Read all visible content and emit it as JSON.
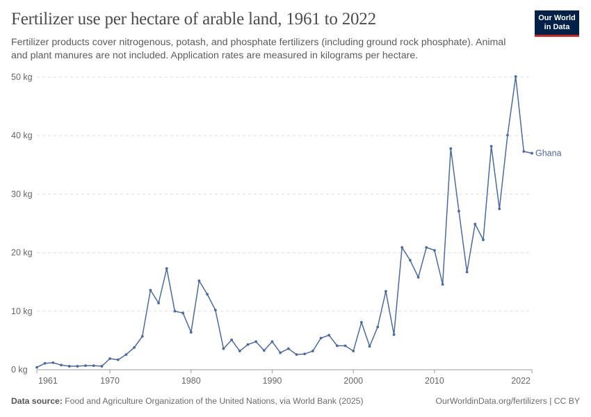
{
  "header": {
    "title": "Fertilizer use per hectare of arable land, 1961 to 2022",
    "subtitle": "Fertilizer products cover nitrogenous, potash, and phosphate fertilizers (including ground rock phosphate). Animal and plant manures are not included. Application rates are measured in kilograms per hectare."
  },
  "logo": {
    "line1": "Our World",
    "line2": "in Data",
    "bg_color": "#002147",
    "accent_color": "#ce261e"
  },
  "footer": {
    "source_label": "Data source:",
    "source_text": "Food and Agriculture Organization of the United Nations, via World Bank (2025)",
    "link_text": "OurWorldinData.org/fertilizers",
    "license_text": "| CC BY"
  },
  "chart_data": {
    "type": "line",
    "x_tick_labels": [
      "1961",
      "1970",
      "1980",
      "1990",
      "2000",
      "2010",
      "2022"
    ],
    "x_ticks": [
      1961,
      1970,
      1980,
      1990,
      2000,
      2010,
      2022
    ],
    "y_tick_labels": [
      "0 kg",
      "10 kg",
      "20 kg",
      "30 kg",
      "40 kg",
      "50 kg"
    ],
    "y_ticks": [
      0,
      10,
      20,
      30,
      40,
      50
    ],
    "xlim": [
      1961,
      2022
    ],
    "ylim": [
      0,
      50
    ],
    "grid": "horizontal dashed",
    "series": [
      {
        "name": "Ghana",
        "color": "#4c6a9c",
        "x": [
          1961,
          1962,
          1963,
          1964,
          1965,
          1966,
          1967,
          1968,
          1969,
          1970,
          1971,
          1972,
          1973,
          1974,
          1975,
          1976,
          1977,
          1978,
          1979,
          1980,
          1981,
          1982,
          1983,
          1984,
          1985,
          1986,
          1987,
          1988,
          1989,
          1990,
          1991,
          1992,
          1993,
          1994,
          1995,
          1996,
          1997,
          1998,
          1999,
          2000,
          2001,
          2002,
          2003,
          2004,
          2005,
          2006,
          2007,
          2008,
          2009,
          2010,
          2011,
          2012,
          2013,
          2014,
          2015,
          2016,
          2017,
          2018,
          2019,
          2020,
          2021,
          2022
        ],
        "values": [
          0.4,
          1.1,
          1.2,
          0.8,
          0.6,
          0.6,
          0.7,
          0.7,
          0.6,
          1.9,
          1.7,
          2.6,
          3.8,
          5.7,
          13.6,
          11.4,
          17.3,
          10.0,
          9.7,
          6.4,
          15.2,
          12.9,
          10.2,
          3.6,
          5.1,
          3.2,
          4.3,
          4.8,
          3.3,
          4.8,
          2.9,
          3.6,
          2.6,
          2.7,
          3.2,
          5.4,
          5.9,
          4.1,
          4.1,
          3.2,
          8.1,
          4.0,
          7.3,
          13.4,
          6.0,
          20.9,
          18.7,
          15.8,
          20.9,
          20.4,
          14.6,
          37.8,
          27.1,
          16.7,
          24.9,
          22.2,
          38.2,
          27.5,
          40.1,
          50.1,
          37.3,
          37.0
        ]
      }
    ]
  }
}
